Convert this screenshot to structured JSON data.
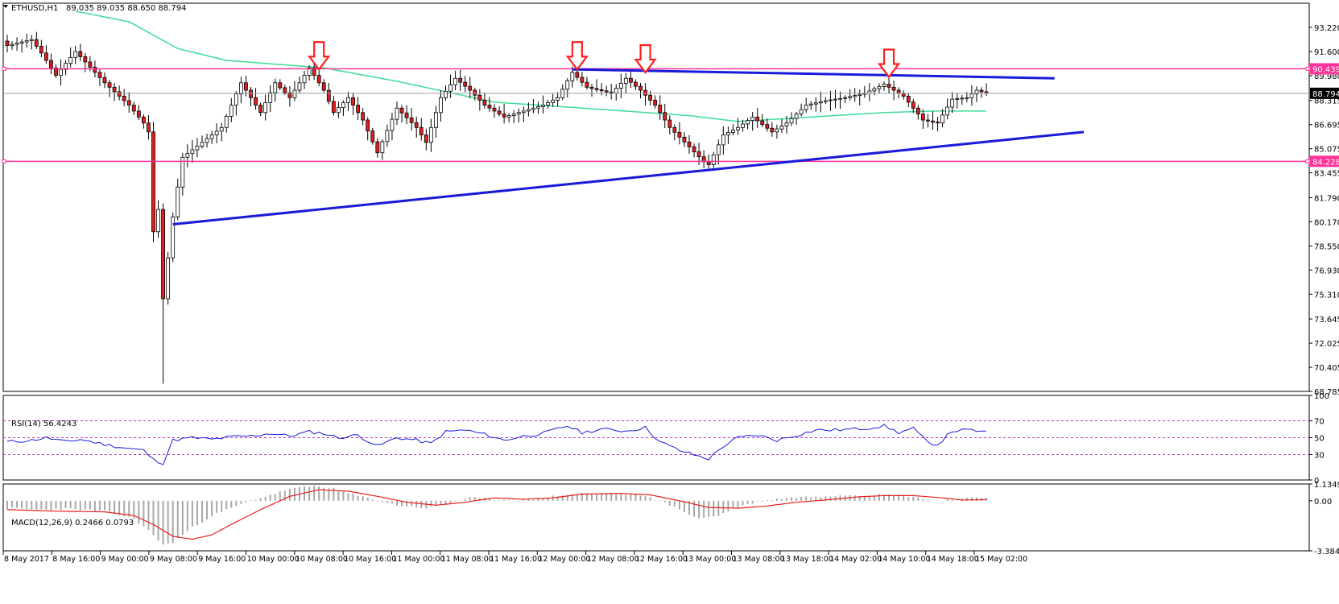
{
  "chart_data": [
    {
      "type": "candlestick",
      "title": "ETHUSD,H1",
      "ohlc_label": "89.035 89.035 88.650 88.794",
      "ylim": [
        68.785,
        94.84
      ],
      "y_ticks": [
        "93.220",
        "91.600",
        "89.980",
        "88.315",
        "86.695",
        "85.075",
        "83.455",
        "81.790",
        "80.170",
        "78.550",
        "76.930",
        "75.310",
        "73.645",
        "72.025",
        "70.405",
        "68.785"
      ],
      "current_price": 88.794,
      "current_price_label": "88.794",
      "horizontal_levels": [
        {
          "value": 90.439,
          "label": "90.439",
          "color": "#ff3399"
        },
        {
          "value": 84.228,
          "label": "84.228",
          "color": "#ff3399"
        }
      ],
      "x_labels": [
        "8 May 2017",
        "8 May 16:00",
        "9 May 00:00",
        "9 May 08:00",
        "9 May 16:00",
        "10 May 00:00",
        "10 May 08:00",
        "10 May 16:00",
        "11 May 00:00",
        "11 May 08:00",
        "11 May 16:00",
        "12 May 00:00",
        "12 May 08:00",
        "12 May 16:00",
        "13 May 00:00",
        "13 May 08:00",
        "13 May 18:00",
        "14 May 02:00",
        "14 May 10:00",
        "14 May 18:00",
        "15 May 02:00"
      ],
      "candle_count": 202,
      "close_keypoints": [
        [
          0,
          92.0
        ],
        [
          5,
          92.4
        ],
        [
          7,
          91.5
        ],
        [
          10,
          90.0
        ],
        [
          14,
          91.6
        ],
        [
          18,
          90.2
        ],
        [
          20,
          89.5
        ],
        [
          25,
          88.0
        ],
        [
          28,
          86.8
        ],
        [
          29,
          86.2
        ],
        [
          30,
          79.5
        ],
        [
          31,
          81.0
        ],
        [
          32,
          75.0
        ],
        [
          34,
          80.5
        ],
        [
          36,
          84.5
        ],
        [
          40,
          85.5
        ],
        [
          44,
          86.5
        ],
        [
          48,
          89.5
        ],
        [
          52,
          87.5
        ],
        [
          55,
          89.5
        ],
        [
          58,
          88.5
        ],
        [
          62,
          90.5
        ],
        [
          65,
          89.0
        ],
        [
          67,
          87.5
        ],
        [
          70,
          88.5
        ],
        [
          73,
          87.0
        ],
        [
          76,
          84.8
        ],
        [
          80,
          87.8
        ],
        [
          84,
          86.5
        ],
        [
          86,
          85.5
        ],
        [
          89,
          88.5
        ],
        [
          92,
          89.8
        ],
        [
          95,
          89.0
        ],
        [
          98,
          88.0
        ],
        [
          102,
          87.2
        ],
        [
          106,
          87.6
        ],
        [
          110,
          88.0
        ],
        [
          113,
          88.5
        ],
        [
          116,
          90.2
        ],
        [
          119,
          89.2
        ],
        [
          124,
          88.8
        ],
        [
          127,
          89.8
        ],
        [
          130,
          89.0
        ],
        [
          133,
          88.0
        ],
        [
          136,
          86.5
        ],
        [
          140,
          85.2
        ],
        [
          143,
          84.2
        ],
        [
          144,
          84.0
        ],
        [
          147,
          86.0
        ],
        [
          150,
          86.5
        ],
        [
          153,
          87.2
        ],
        [
          157,
          86.2
        ],
        [
          160,
          86.8
        ],
        [
          164,
          88.0
        ],
        [
          168,
          88.3
        ],
        [
          172,
          88.5
        ],
        [
          176,
          88.8
        ],
        [
          180,
          89.4
        ],
        [
          182,
          89.0
        ],
        [
          184,
          88.6
        ],
        [
          188,
          87.0
        ],
        [
          191,
          86.8
        ],
        [
          194,
          88.4
        ],
        [
          197,
          88.5
        ],
        [
          199,
          89.0
        ],
        [
          201,
          88.794
        ]
      ],
      "moving_average": {
        "color": "#3ddc97",
        "keypoints": [
          [
            14,
            94.3
          ],
          [
            25,
            93.6
          ],
          [
            35,
            91.8
          ],
          [
            45,
            91.0
          ],
          [
            65,
            90.5
          ],
          [
            80,
            89.6
          ],
          [
            100,
            88.2
          ],
          [
            118,
            87.8
          ],
          [
            140,
            87.3
          ],
          [
            150,
            86.9
          ],
          [
            165,
            87.2
          ],
          [
            180,
            87.5
          ],
          [
            190,
            87.6
          ],
          [
            201,
            87.6
          ]
        ]
      },
      "trendlines": [
        {
          "name": "support",
          "color": "#1a1adb",
          "points": [
            [
              34,
              80.0
            ],
            [
              221,
              86.2
            ]
          ]
        },
        {
          "name": "resistance",
          "color": "#1a1adb",
          "points": [
            [
              116,
              90.4
            ],
            [
              215,
              89.8
            ]
          ]
        }
      ],
      "annotation_arrows": [
        {
          "type": "down-arrow",
          "color": "#ff1f1f",
          "index": 64,
          "at_value": 90.5
        },
        {
          "type": "down-arrow",
          "color": "#ff1f1f",
          "index": 117,
          "at_value": 90.5
        },
        {
          "type": "down-arrow",
          "color": "#ff1f1f",
          "index": 131,
          "at_value": 90.3
        },
        {
          "type": "down-arrow",
          "color": "#ff1f1f",
          "index": 181,
          "at_value": 90.0
        }
      ]
    },
    {
      "type": "line",
      "title": "RSI(14) 56.4243",
      "ylim": [
        0,
        100
      ],
      "y_ticks": [
        "100",
        "70",
        "50",
        "30",
        "0"
      ],
      "levels": [
        70,
        50,
        30
      ],
      "line_color": "#1a1adb",
      "keypoints": [
        [
          0,
          45
        ],
        [
          5,
          47
        ],
        [
          8,
          50
        ],
        [
          12,
          45
        ],
        [
          15,
          48
        ],
        [
          20,
          42
        ],
        [
          24,
          38
        ],
        [
          28,
          35
        ],
        [
          30,
          24
        ],
        [
          32,
          20
        ],
        [
          34,
          47
        ],
        [
          38,
          50
        ],
        [
          42,
          48
        ],
        [
          46,
          51
        ],
        [
          50,
          52
        ],
        [
          54,
          55
        ],
        [
          58,
          52
        ],
        [
          62,
          57
        ],
        [
          65,
          55
        ],
        [
          68,
          50
        ],
        [
          72,
          53
        ],
        [
          76,
          40
        ],
        [
          80,
          50
        ],
        [
          84,
          47
        ],
        [
          87,
          43
        ],
        [
          90,
          57
        ],
        [
          94,
          59
        ],
        [
          98,
          54
        ],
        [
          102,
          47
        ],
        [
          106,
          52
        ],
        [
          110,
          55
        ],
        [
          115,
          64
        ],
        [
          118,
          56
        ],
        [
          122,
          60
        ],
        [
          127,
          58
        ],
        [
          131,
          62
        ],
        [
          134,
          45
        ],
        [
          138,
          35
        ],
        [
          142,
          28
        ],
        [
          144,
          25
        ],
        [
          147,
          40
        ],
        [
          150,
          50
        ],
        [
          154,
          53
        ],
        [
          158,
          47
        ],
        [
          162,
          53
        ],
        [
          166,
          59
        ],
        [
          170,
          59
        ],
        [
          176,
          61
        ],
        [
          180,
          64
        ],
        [
          183,
          56
        ],
        [
          186,
          61
        ],
        [
          189,
          44
        ],
        [
          191,
          42
        ],
        [
          194,
          58
        ],
        [
          198,
          59
        ],
        [
          201,
          56
        ]
      ]
    },
    {
      "type": "bar+line",
      "title": "MACD(12,26,9) 0.2466 0.0793",
      "ylim": [
        -3.3843,
        1.1349
      ],
      "y_ticks": [
        "1.1349",
        "0.00",
        "-3.3843"
      ],
      "histogram_color": "#a8a8a8",
      "signal_color": "#e81f1f",
      "histogram_keypoints": [
        [
          0,
          -0.5
        ],
        [
          6,
          -0.6
        ],
        [
          12,
          -0.55
        ],
        [
          20,
          -0.7
        ],
        [
          26,
          -1.2
        ],
        [
          30,
          -2.3
        ],
        [
          32,
          -3.0
        ],
        [
          34,
          -2.8
        ],
        [
          38,
          -1.8
        ],
        [
          42,
          -1.0
        ],
        [
          46,
          -0.5
        ],
        [
          50,
          0.0
        ],
        [
          54,
          0.4
        ],
        [
          58,
          0.8
        ],
        [
          63,
          1.0
        ],
        [
          66,
          0.9
        ],
        [
          70,
          0.5
        ],
        [
          75,
          0.1
        ],
        [
          80,
          -0.3
        ],
        [
          86,
          -0.5
        ],
        [
          90,
          -0.2
        ],
        [
          95,
          0.2
        ],
        [
          100,
          0.1
        ],
        [
          106,
          0.0
        ],
        [
          112,
          0.3
        ],
        [
          118,
          0.5
        ],
        [
          125,
          0.5
        ],
        [
          130,
          0.4
        ],
        [
          134,
          0.0
        ],
        [
          138,
          -0.6
        ],
        [
          142,
          -1.2
        ],
        [
          146,
          -1.0
        ],
        [
          150,
          -0.4
        ],
        [
          155,
          0.0
        ],
        [
          160,
          0.2
        ],
        [
          166,
          0.3
        ],
        [
          172,
          0.4
        ],
        [
          178,
          0.4
        ],
        [
          182,
          0.4
        ],
        [
          186,
          0.3
        ],
        [
          190,
          0.0
        ],
        [
          195,
          0.1
        ],
        [
          201,
          0.2466
        ]
      ],
      "signal_keypoints": [
        [
          0,
          -0.6
        ],
        [
          10,
          -0.7
        ],
        [
          20,
          -0.75
        ],
        [
          26,
          -1.0
        ],
        [
          30,
          -1.6
        ],
        [
          34,
          -2.4
        ],
        [
          38,
          -2.6
        ],
        [
          42,
          -2.3
        ],
        [
          46,
          -1.6
        ],
        [
          52,
          -0.6
        ],
        [
          58,
          0.3
        ],
        [
          64,
          0.75
        ],
        [
          70,
          0.65
        ],
        [
          76,
          0.3
        ],
        [
          82,
          -0.1
        ],
        [
          88,
          -0.3
        ],
        [
          94,
          -0.1
        ],
        [
          100,
          0.2
        ],
        [
          106,
          0.1
        ],
        [
          112,
          0.2
        ],
        [
          118,
          0.45
        ],
        [
          126,
          0.5
        ],
        [
          132,
          0.4
        ],
        [
          138,
          0.0
        ],
        [
          144,
          -0.45
        ],
        [
          150,
          -0.5
        ],
        [
          156,
          -0.35
        ],
        [
          162,
          -0.1
        ],
        [
          168,
          0.05
        ],
        [
          174,
          0.25
        ],
        [
          180,
          0.35
        ],
        [
          186,
          0.35
        ],
        [
          192,
          0.2
        ],
        [
          196,
          0.05
        ],
        [
          201,
          0.0793
        ]
      ]
    }
  ]
}
